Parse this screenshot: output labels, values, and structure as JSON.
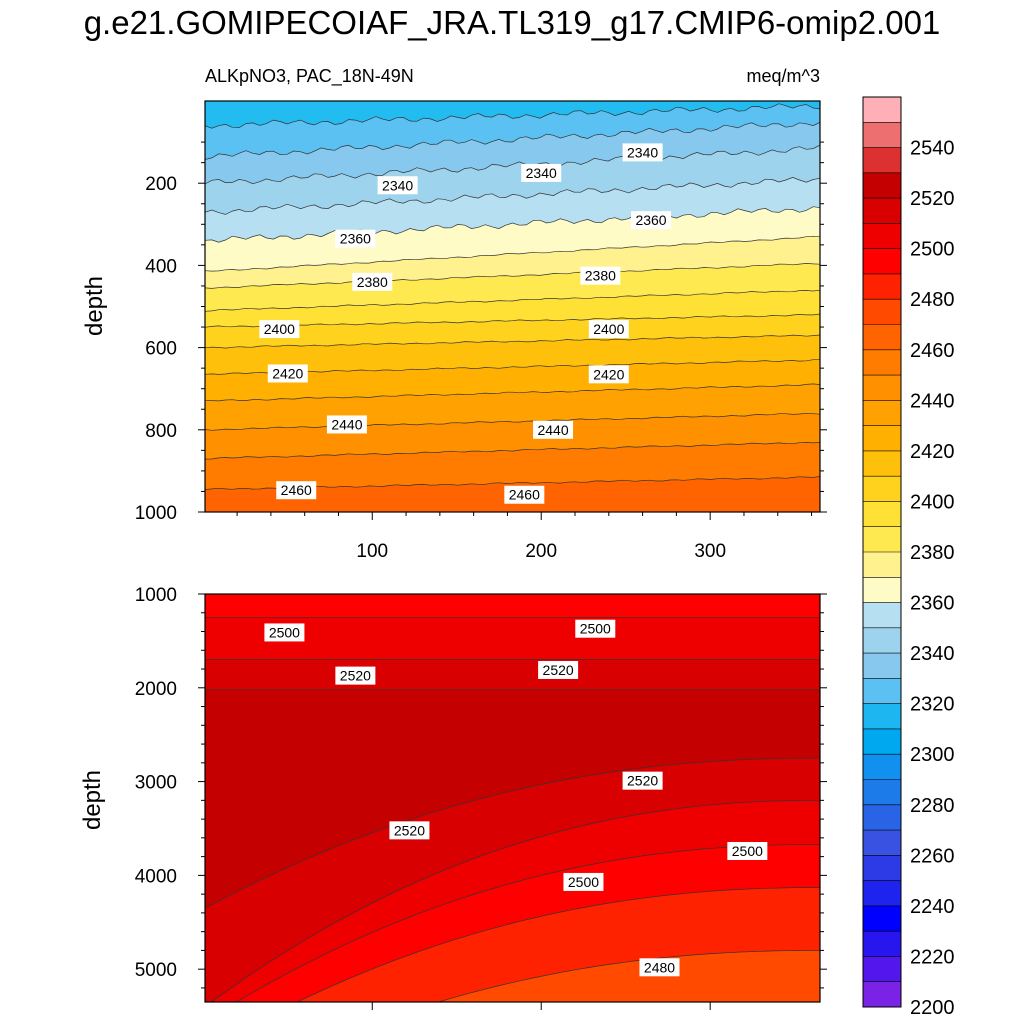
{
  "title": "g.e21.GOMIPECOIAF_JRA.TL319_g17.CMIP6-omip2.001",
  "subtitle_left": "ALKpNO3, PAC_18N-49N",
  "subtitle_right": "meq/m^3",
  "chart_data": [
    {
      "type": "heatmap",
      "panel": "top",
      "xlabel": "",
      "ylabel": "depth",
      "xlim": [
        1,
        365
      ],
      "ylim": [
        1000,
        0
      ],
      "x_ticks": [
        100,
        200,
        300
      ],
      "y_ticks": [
        200,
        400,
        600,
        800,
        1000
      ],
      "contour_lines": [
        {
          "level": 2320,
          "depth_start": 60,
          "depth_end": 12
        },
        {
          "level": 2330,
          "depth_start": 135,
          "depth_end": 52
        },
        {
          "level": 2340,
          "depth_start": 200,
          "depth_end": 115
        },
        {
          "level": 2350,
          "depth_start": 270,
          "depth_end": 190
        },
        {
          "level": 2360,
          "depth_start": 340,
          "depth_end": 260
        },
        {
          "level": 2370,
          "depth_start": 415,
          "depth_end": 330
        },
        {
          "level": 2380,
          "depth_start": 455,
          "depth_end": 395
        },
        {
          "level": 2390,
          "depth_start": 510,
          "depth_end": 460
        },
        {
          "level": 2400,
          "depth_start": 550,
          "depth_end": 520
        },
        {
          "level": 2410,
          "depth_start": 600,
          "depth_end": 570
        },
        {
          "level": 2420,
          "depth_start": 665,
          "depth_end": 630
        },
        {
          "level": 2430,
          "depth_start": 730,
          "depth_end": 690
        },
        {
          "level": 2440,
          "depth_start": 800,
          "depth_end": 760
        },
        {
          "level": 2450,
          "depth_start": 870,
          "depth_end": 830
        },
        {
          "level": 2460,
          "depth_start": 945,
          "depth_end": 915
        }
      ],
      "contour_labels": [
        {
          "text": "2340",
          "x": 115,
          "depth": 205
        },
        {
          "text": "2340",
          "x": 200,
          "depth": 175
        },
        {
          "text": "2340",
          "x": 260,
          "depth": 125
        },
        {
          "text": "2360",
          "x": 90,
          "depth": 335
        },
        {
          "text": "2360",
          "x": 265,
          "depth": 290
        },
        {
          "text": "2380",
          "x": 100,
          "depth": 440
        },
        {
          "text": "2380",
          "x": 235,
          "depth": 425
        },
        {
          "text": "2400",
          "x": 45,
          "depth": 555
        },
        {
          "text": "2400",
          "x": 240,
          "depth": 555
        },
        {
          "text": "2420",
          "x": 50,
          "depth": 663
        },
        {
          "text": "2420",
          "x": 240,
          "depth": 665
        },
        {
          "text": "2440",
          "x": 85,
          "depth": 787
        },
        {
          "text": "2440",
          "x": 207,
          "depth": 800
        },
        {
          "text": "2460",
          "x": 55,
          "depth": 947
        },
        {
          "text": "2460",
          "x": 190,
          "depth": 958
        }
      ]
    },
    {
      "type": "heatmap",
      "panel": "bottom",
      "xlabel": "",
      "ylabel": "depth",
      "xlim": [
        1,
        365
      ],
      "ylim": [
        5350,
        1000
      ],
      "x_ticks": [
        100,
        200,
        300
      ],
      "y_ticks": [
        1000,
        2000,
        3000,
        4000,
        5000
      ],
      "fill_regions": [
        {
          "value": 2495,
          "upper_depth": 1000
        },
        {
          "value": 2505,
          "upper_depth": 1250
        },
        {
          "value": 2515,
          "upper_depth": 1700
        },
        {
          "value": 2525,
          "upper_depth": 2020
        }
      ],
      "contour_labels": [
        {
          "text": "2500",
          "x": 48,
          "depth": 1410
        },
        {
          "text": "2500",
          "x": 232,
          "depth": 1370
        },
        {
          "text": "2520",
          "x": 90,
          "depth": 1870
        },
        {
          "text": "2520",
          "x": 210,
          "depth": 1810
        },
        {
          "text": "2520",
          "x": 260,
          "depth": 2990
        },
        {
          "text": "2520",
          "x": 122,
          "depth": 3520
        },
        {
          "text": "2500",
          "x": 225,
          "depth": 4070
        },
        {
          "text": "2500",
          "x": 322,
          "depth": 3740
        },
        {
          "text": "2480",
          "x": 270,
          "depth": 4980
        }
      ]
    }
  ],
  "colorbar": {
    "labels": [
      "2540",
      "2520",
      "2500",
      "2480",
      "2460",
      "2440",
      "2420",
      "2400",
      "2380",
      "2360",
      "2340",
      "2320",
      "2300",
      "2280",
      "2260",
      "2240",
      "2220",
      "2200"
    ],
    "colors_top_to_bottom": [
      "#ffb0b6",
      "#ee6f70",
      "#dd3131",
      "#c50000",
      "#d80000",
      "#ef0000",
      "#ff0000",
      "#ff2200",
      "#ff4a00",
      "#ff6400",
      "#ff7c00",
      "#ff9000",
      "#ffa100",
      "#ffb000",
      "#ffc00c",
      "#ffd21e",
      "#ffe035",
      "#ffe950",
      "#fff18e",
      "#fffbc6",
      "#b6e0f2",
      "#9ed3ee",
      "#87c8ee",
      "#5bc1f2",
      "#1eb6f1",
      "#00a8ef",
      "#1190f0",
      "#1d7ae9",
      "#2a64e6",
      "#3a52e2",
      "#2d3be6",
      "#1e23ee",
      "#0000ff",
      "#2816ee",
      "#5316ed",
      "#7a22e6"
    ]
  }
}
